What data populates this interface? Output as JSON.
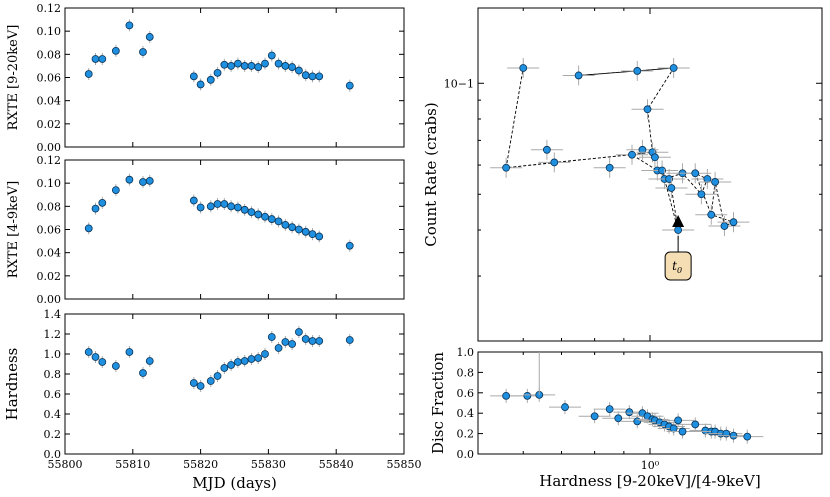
{
  "chart_data": [
    {
      "type": "scatter",
      "id": "rxte_9_20",
      "ylabel": "RXTE [9-20keV]",
      "ylim": [
        0.0,
        0.12
      ],
      "yticks": [
        "0.00",
        "0.02",
        "0.04",
        "0.06",
        "0.08",
        "0.10",
        "0.12"
      ],
      "xlim": [
        55800,
        55850
      ],
      "x": [
        55803.5,
        55804.5,
        55805.5,
        55807.5,
        55809.5,
        55811.5,
        55812.5,
        55819,
        55820,
        55821.5,
        55822.5,
        55823.5,
        55824.5,
        55825.5,
        55826.5,
        55827.5,
        55828.5,
        55829.5,
        55830.5,
        55831.5,
        55832.5,
        55833.5,
        55834.5,
        55835.5,
        55836.5,
        55837.5,
        55842
      ],
      "y": [
        0.063,
        0.076,
        0.076,
        0.083,
        0.105,
        0.082,
        0.095,
        0.061,
        0.054,
        0.058,
        0.064,
        0.071,
        0.07,
        0.072,
        0.07,
        0.07,
        0.069,
        0.072,
        0.079,
        0.072,
        0.07,
        0.069,
        0.066,
        0.062,
        0.061,
        0.061,
        0.053
      ]
    },
    {
      "type": "scatter",
      "id": "rxte_4_9",
      "ylabel": "RXTE [4-9keV]",
      "ylim": [
        0.0,
        0.12
      ],
      "yticks": [
        "0.00",
        "0.02",
        "0.04",
        "0.06",
        "0.08",
        "0.10",
        "0.12"
      ],
      "xlim": [
        55800,
        55850
      ],
      "x": [
        55803.5,
        55804.5,
        55805.5,
        55807.5,
        55809.5,
        55811.5,
        55812.5,
        55819,
        55820,
        55821.5,
        55822.5,
        55823.5,
        55824.5,
        55825.5,
        55826.5,
        55827.5,
        55828.5,
        55829.5,
        55830.5,
        55831.5,
        55832.5,
        55833.5,
        55834.5,
        55835.5,
        55836.5,
        55837.5,
        55842
      ],
      "y": [
        0.061,
        0.078,
        0.083,
        0.094,
        0.103,
        0.101,
        0.102,
        0.085,
        0.079,
        0.08,
        0.082,
        0.082,
        0.08,
        0.079,
        0.077,
        0.075,
        0.073,
        0.071,
        0.069,
        0.067,
        0.064,
        0.062,
        0.06,
        0.058,
        0.056,
        0.054,
        0.046
      ]
    },
    {
      "type": "scatter",
      "id": "hardness_time",
      "ylabel": "Hardness",
      "xlabel": "MJD (days)",
      "ylim": [
        0.0,
        1.4
      ],
      "yticks": [
        "0.0",
        "0.2",
        "0.4",
        "0.6",
        "0.8",
        "1.0",
        "1.2",
        "1.4"
      ],
      "xlim": [
        55800,
        55850
      ],
      "xticks": [
        "55800",
        "55810",
        "55820",
        "55830",
        "55840",
        "55850"
      ],
      "x": [
        55803.5,
        55804.5,
        55805.5,
        55807.5,
        55809.5,
        55811.5,
        55812.5,
        55819,
        55820,
        55821.5,
        55822.5,
        55823.5,
        55824.5,
        55825.5,
        55826.5,
        55827.5,
        55828.5,
        55829.5,
        55830.5,
        55831.5,
        55832.5,
        55833.5,
        55834.5,
        55835.5,
        55836.5,
        55837.5,
        55842
      ],
      "y": [
        1.02,
        0.97,
        0.92,
        0.88,
        1.02,
        0.81,
        0.93,
        0.71,
        0.68,
        0.73,
        0.78,
        0.86,
        0.89,
        0.92,
        0.93,
        0.95,
        0.96,
        1.0,
        1.17,
        1.06,
        1.12,
        1.1,
        1.22,
        1.15,
        1.13,
        1.13,
        1.14
      ]
    },
    {
      "type": "scatter",
      "id": "hid",
      "ylabel": "Count Rate (crabs)",
      "yscale": "log",
      "xscale": "log",
      "ylim": [
        0.02,
        0.16
      ],
      "ytick_label": "10−1",
      "xlim": [
        0.5,
        2.0
      ],
      "x": [
        0.56,
        0.6,
        0.66,
        0.68,
        0.75,
        0.85,
        0.93,
        0.95,
        0.97,
        0.99,
        1.01,
        1.02,
        1.03,
        1.05,
        1.06,
        1.08,
        1.09,
        1.1,
        1.12,
        1.14,
        1.2,
        1.23,
        1.26,
        1.28,
        1.3,
        1.35,
        1.4
      ],
      "y": [
        0.059,
        0.11,
        0.066,
        0.061,
        0.105,
        0.059,
        0.064,
        0.108,
        0.066,
        0.085,
        0.065,
        0.063,
        0.058,
        0.058,
        0.055,
        0.055,
        0.052,
        0.11,
        0.04,
        0.057,
        0.057,
        0.05,
        0.055,
        0.044,
        0.054,
        0.041,
        0.042
      ],
      "annotation": "t0"
    },
    {
      "type": "scatter",
      "id": "disc_fraction",
      "ylabel": "Disc Fraction",
      "xlabel": "Hardness [9-20keV]/[4-9keV]",
      "xscale": "log",
      "ylim": [
        0.0,
        1.0
      ],
      "yticks": [
        "0.0",
        "0.2",
        "0.4",
        "0.6",
        "0.8",
        "1.0"
      ],
      "xlim": [
        0.5,
        2.0
      ],
      "xtick_label": "10⁰",
      "x": [
        0.56,
        0.61,
        0.64,
        0.71,
        0.8,
        0.85,
        0.88,
        0.92,
        0.95,
        0.97,
        0.99,
        1.01,
        1.02,
        1.04,
        1.06,
        1.08,
        1.1,
        1.12,
        1.14,
        1.2,
        1.25,
        1.28,
        1.3,
        1.33,
        1.36,
        1.4,
        1.48
      ],
      "y": [
        0.57,
        0.57,
        0.58,
        0.46,
        0.37,
        0.44,
        0.35,
        0.41,
        0.32,
        0.4,
        0.37,
        0.34,
        0.33,
        0.31,
        0.29,
        0.27,
        0.25,
        0.33,
        0.22,
        0.29,
        0.23,
        0.22,
        0.22,
        0.2,
        0.2,
        0.18,
        0.17
      ]
    }
  ],
  "hid_path": [
    [
      1.1,
      0.11
    ],
    [
      0.95,
      0.108
    ],
    [
      0.75,
      0.105
    ],
    [
      1.1,
      0.11
    ],
    [
      0.99,
      0.085
    ],
    [
      1.01,
      0.065
    ],
    [
      0.56,
      0.059
    ],
    [
      0.6,
      0.11
    ],
    [
      0.56,
      0.059
    ],
    [
      0.68,
      0.061
    ],
    [
      0.93,
      0.064
    ],
    [
      1.03,
      0.058
    ],
    [
      1.08,
      0.055
    ],
    [
      1.09,
      0.052
    ],
    [
      1.12,
      0.04
    ],
    [
      1.06,
      0.055
    ],
    [
      1.14,
      0.057
    ],
    [
      1.23,
      0.05
    ],
    [
      1.26,
      0.055
    ],
    [
      1.2,
      0.057
    ],
    [
      1.28,
      0.044
    ],
    [
      1.3,
      0.054
    ],
    [
      1.35,
      0.041
    ],
    [
      1.4,
      0.042
    ],
    [
      1.28,
      0.044
    ]
  ],
  "t0_label": "t",
  "t0_sub": "0"
}
